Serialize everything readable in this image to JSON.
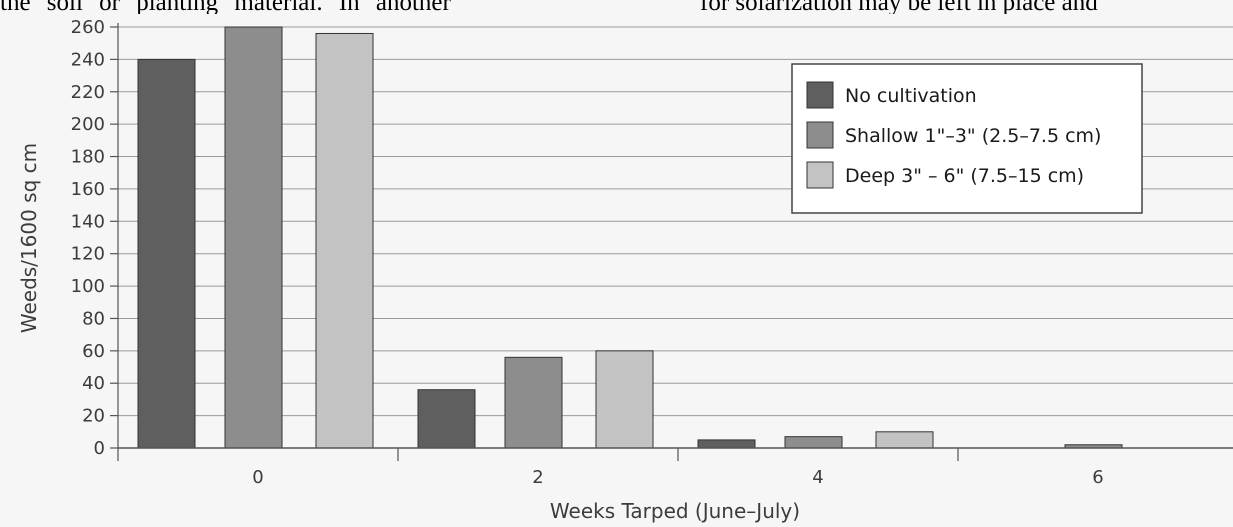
{
  "page_text": {
    "top_left": "the soil or planting material. In another",
    "top_right": "for solarization may be left in place and"
  },
  "chart_data": {
    "type": "bar",
    "title": "",
    "xlabel": "Weeks Tarped (June–July)",
    "ylabel": "Weeds/1600 sq cm",
    "categories": [
      "0",
      "2",
      "4",
      "6"
    ],
    "ylim": [
      0,
      260
    ],
    "yticks": [
      0,
      20,
      40,
      60,
      80,
      100,
      120,
      140,
      160,
      180,
      200,
      220,
      240,
      260
    ],
    "grid": true,
    "legend_position": "top-right",
    "series": [
      {
        "name": "No cultivation",
        "color": "#5f5f5f",
        "values": [
          240,
          36,
          5,
          0
        ]
      },
      {
        "name": "Shallow 1\"–3\" (2.5–7.5 cm)",
        "color": "#8d8d8d",
        "values": [
          260,
          56,
          7,
          2
        ]
      },
      {
        "name": "Deep 3\" – 6\" (7.5–15 cm)",
        "color": "#c3c3c3",
        "values": [
          256,
          60,
          10,
          0
        ]
      }
    ]
  }
}
